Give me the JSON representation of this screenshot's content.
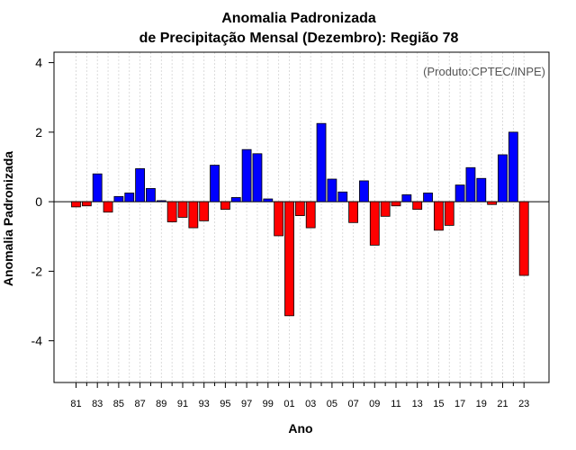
{
  "chart_data": {
    "type": "bar",
    "title_line1": "Anomalia Padronizada",
    "title_line2": "de Precipitação Mensal (Dezembro): Região 78",
    "xlabel": "Ano",
    "ylabel": "Anomalia Padronizada",
    "credit": "(Produto:CPTEC/INPE)",
    "ylim": [
      -5.2,
      4.3
    ],
    "yticks": [
      -4,
      -2,
      0,
      2,
      4
    ],
    "ytick_labels": [
      "-4",
      "-2",
      "0",
      "2",
      "4"
    ],
    "years": [
      1981,
      1982,
      1983,
      1984,
      1985,
      1986,
      1987,
      1988,
      1989,
      1990,
      1991,
      1992,
      1993,
      1994,
      1995,
      1996,
      1997,
      1998,
      1999,
      2000,
      2001,
      2002,
      2003,
      2004,
      2005,
      2006,
      2007,
      2008,
      2009,
      2010,
      2011,
      2012,
      2013,
      2014,
      2015,
      2016,
      2017,
      2018,
      2019,
      2020,
      2021,
      2022,
      2023
    ],
    "xtick_labels": [
      "81",
      "83",
      "85",
      "87",
      "89",
      "91",
      "93",
      "95",
      "97",
      "99",
      "01",
      "03",
      "05",
      "07",
      "09",
      "11",
      "13",
      "15",
      "17",
      "19",
      "21",
      "23"
    ],
    "values": [
      -0.15,
      -0.12,
      0.8,
      -0.3,
      0.15,
      0.25,
      0.95,
      0.38,
      0.03,
      -0.58,
      -0.45,
      -0.75,
      -0.55,
      1.05,
      -0.22,
      0.12,
      1.5,
      1.38,
      0.08,
      -0.98,
      -3.28,
      -0.4,
      -0.75,
      2.25,
      0.65,
      0.28,
      -0.6,
      0.6,
      -1.25,
      -0.42,
      -0.12,
      0.2,
      -0.22,
      0.25,
      -0.82,
      -0.68,
      0.48,
      0.98,
      0.67,
      -0.08,
      1.35,
      2.0,
      -2.12
    ],
    "colors": {
      "positive": "#0000ff",
      "negative": "#ff0000",
      "grid": "#d3d3d3",
      "axis": "#000000"
    }
  }
}
